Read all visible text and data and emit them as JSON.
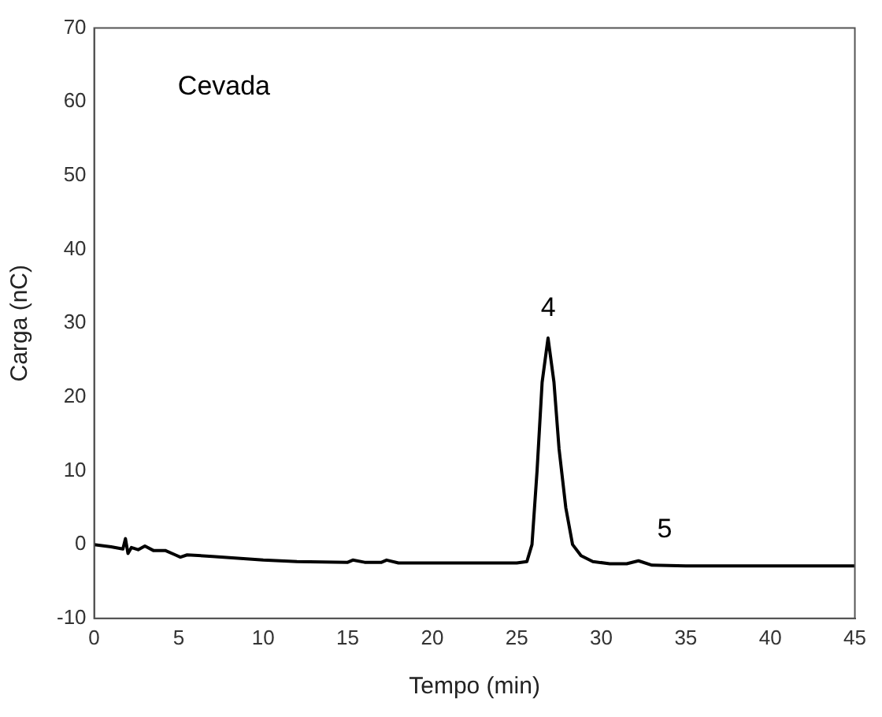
{
  "chart_data": {
    "type": "line",
    "xlabel": "Tempo (min)",
    "ylabel": "Carga (nC)",
    "xlim": [
      0,
      45
    ],
    "xticks": [
      0,
      5,
      10,
      15,
      20,
      25,
      30,
      35,
      40,
      45
    ],
    "ylim": [
      -10,
      70
    ],
    "yticks": [
      -10,
      0,
      10,
      20,
      30,
      40,
      50,
      60,
      70
    ],
    "grid": false,
    "legend": false,
    "series": [
      {
        "color": "#000000",
        "x": [
          0,
          1,
          1.7,
          1.85,
          2,
          2.2,
          2.6,
          3,
          3.5,
          4.2,
          4.8,
          5.1,
          5.5,
          7,
          10,
          12,
          15,
          15.3,
          16,
          17,
          17.3,
          18,
          20,
          22,
          25,
          25.6,
          25.9,
          26.2,
          26.5,
          26.85,
          27.2,
          27.5,
          27.9,
          28.3,
          28.8,
          29.5,
          30.5,
          31.5,
          32.2,
          33,
          35,
          40,
          45
        ],
        "values": [
          0,
          -0.3,
          -0.6,
          0.8,
          -1.2,
          -0.4,
          -0.7,
          -0.2,
          -0.8,
          -0.8,
          -1.4,
          -1.7,
          -1.4,
          -1.6,
          -2.1,
          -2.3,
          -2.4,
          -2.1,
          -2.4,
          -2.4,
          -2.1,
          -2.5,
          -2.5,
          -2.5,
          -2.5,
          -2.3,
          0,
          10,
          22,
          28,
          22,
          13,
          5,
          0,
          -1.5,
          -2.3,
          -2.6,
          -2.6,
          -2.2,
          -2.8,
          -2.9,
          -2.9,
          -2.9
        ]
      }
    ],
    "annotations": [
      "Cevada",
      "4",
      "5"
    ]
  }
}
